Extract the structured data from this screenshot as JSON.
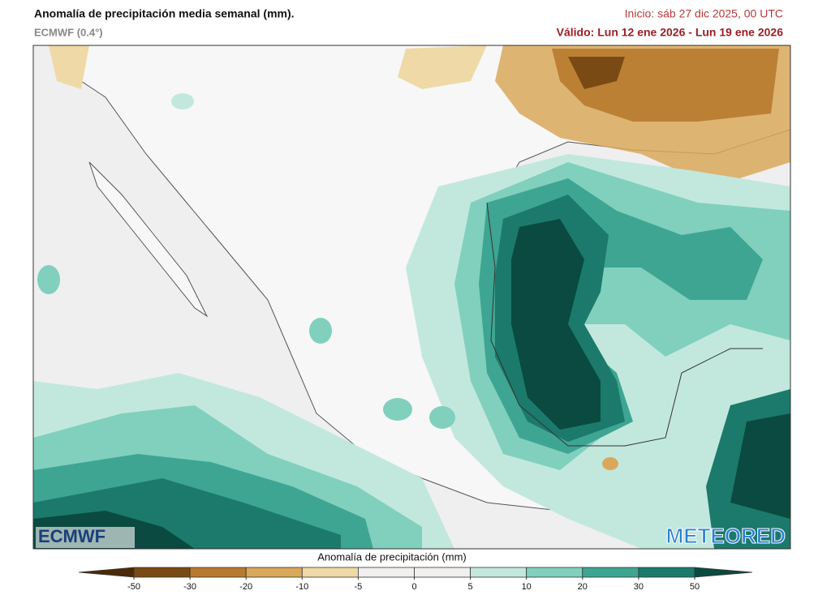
{
  "header": {
    "title": "Anomalía de precipitación media semanal (mm).",
    "model": "ECMWF (0.4°)",
    "init": "Inicio:  sáb 27 dic 2025, 00 UTC",
    "valid": "Válido: Lun 12 ene 2026 - Lun 19 ene 2026"
  },
  "logos": {
    "left": "ECMWF",
    "right": "METEORED"
  },
  "legend": {
    "title": "Anomalía de precipitación (mm)",
    "ticks": [
      -50,
      -30,
      -20,
      -10,
      -5,
      0,
      5,
      10,
      20,
      30,
      50
    ],
    "colors": [
      "#4a2a08",
      "#7a4a14",
      "#b87a2e",
      "#d9a85a",
      "#efd9a6",
      "#f1f0ee",
      "#f1f0ee",
      "#c2e8de",
      "#80d0bd",
      "#3ea592",
      "#1b7a6b",
      "#0b4a40"
    ]
  }
}
